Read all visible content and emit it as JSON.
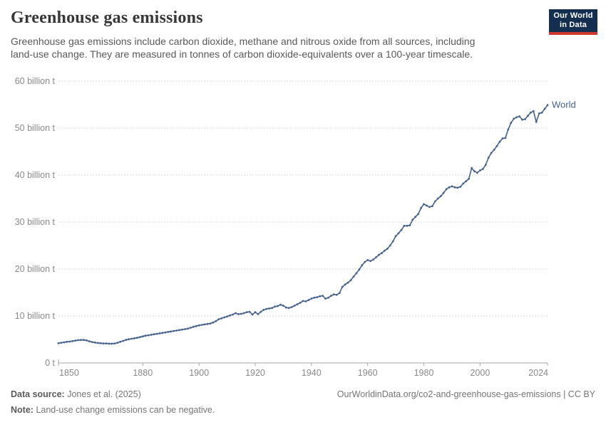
{
  "header": {
    "title": "Greenhouse gas emissions",
    "subtitle_line1": "Greenhouse gas emissions include carbon dioxide, methane and nitrous oxide from all sources, including",
    "subtitle_line2": "land-use change. They are measured in tonnes of carbon dioxide-equivalents over a 100-year timescale.",
    "logo": {
      "line1": "Our World",
      "line2": "in Data",
      "bg_color": "#132e4e",
      "accent_color": "#d0382d"
    }
  },
  "chart_data": {
    "type": "line",
    "title": "Greenhouse gas emissions",
    "xlabel": "",
    "ylabel": "",
    "xlim": [
      1850,
      2024
    ],
    "ylim": [
      0,
      60
    ],
    "grid": "horizontal-dashed",
    "legend_position": "end-of-line",
    "x_ticks": [
      1850,
      1880,
      1900,
      1920,
      1940,
      1960,
      1980,
      2000,
      2024
    ],
    "y_ticks": [
      {
        "value": 0,
        "label": "0 t"
      },
      {
        "value": 10,
        "label": "10 billion t"
      },
      {
        "value": 20,
        "label": "20 billion t"
      },
      {
        "value": 30,
        "label": "30 billion t"
      },
      {
        "value": 40,
        "label": "40 billion t"
      },
      {
        "value": 50,
        "label": "50 billion t"
      },
      {
        "value": 60,
        "label": "60 billion t"
      }
    ],
    "unit_label": "billion t",
    "series": [
      {
        "name": "World",
        "color": "#45618e",
        "x_start": 1850,
        "x_step": 1,
        "values": [
          4.2,
          4.3,
          4.4,
          4.5,
          4.55,
          4.65,
          4.75,
          4.85,
          4.9,
          4.9,
          4.8,
          4.6,
          4.45,
          4.35,
          4.25,
          4.2,
          4.15,
          4.15,
          4.1,
          4.1,
          4.15,
          4.3,
          4.5,
          4.7,
          4.9,
          5.05,
          5.15,
          5.25,
          5.35,
          5.5,
          5.65,
          5.8,
          5.9,
          6.0,
          6.1,
          6.2,
          6.3,
          6.4,
          6.5,
          6.6,
          6.7,
          6.8,
          6.9,
          7.0,
          7.1,
          7.2,
          7.3,
          7.5,
          7.7,
          7.85,
          8.0,
          8.1,
          8.2,
          8.3,
          8.4,
          8.6,
          8.9,
          9.3,
          9.5,
          9.7,
          9.9,
          10.1,
          10.3,
          10.6,
          10.4,
          10.45,
          10.6,
          10.8,
          10.9,
          10.3,
          10.8,
          10.4,
          10.9,
          11.3,
          11.5,
          11.6,
          11.7,
          12.0,
          12.1,
          12.4,
          12.2,
          11.8,
          11.7,
          11.9,
          12.2,
          12.5,
          12.8,
          13.2,
          13.1,
          13.4,
          13.7,
          13.9,
          14.0,
          14.2,
          14.3,
          13.7,
          13.9,
          14.3,
          14.6,
          14.5,
          14.9,
          16.2,
          16.7,
          17.1,
          17.6,
          18.4,
          19.1,
          19.9,
          20.8,
          21.5,
          21.9,
          21.7,
          22.0,
          22.5,
          23.0,
          23.4,
          23.9,
          24.3,
          25.0,
          25.9,
          27.0,
          27.6,
          28.3,
          29.2,
          29.2,
          29.3,
          30.5,
          31.1,
          31.7,
          33.0,
          33.8,
          33.5,
          33.2,
          33.4,
          34.4,
          35.0,
          35.5,
          36.2,
          37.0,
          37.4,
          37.6,
          37.4,
          37.3,
          37.5,
          38.2,
          38.7,
          39.2,
          41.5,
          40.8,
          40.5,
          41.0,
          41.3,
          42.2,
          43.7,
          44.7,
          45.4,
          46.2,
          47.1,
          47.8,
          47.9,
          49.7,
          51.1,
          52.0,
          52.3,
          52.5,
          51.8,
          51.9,
          52.6,
          53.3,
          53.6,
          51.3,
          53.1,
          53.3,
          54.1,
          54.9
        ]
      }
    ],
    "style": {
      "gridline_color": "#dadada",
      "axis_line_color": "#a5a5a5",
      "axis_text_color": "#898989"
    }
  },
  "footer": {
    "source_label": "Data source:",
    "source_value": "Jones et al. (2025)",
    "citation": "OurWorldinData.org/co2-and-greenhouse-gas-emissions | CC BY",
    "note_label": "Note:",
    "note_value": "Land-use change emissions can be negative."
  }
}
